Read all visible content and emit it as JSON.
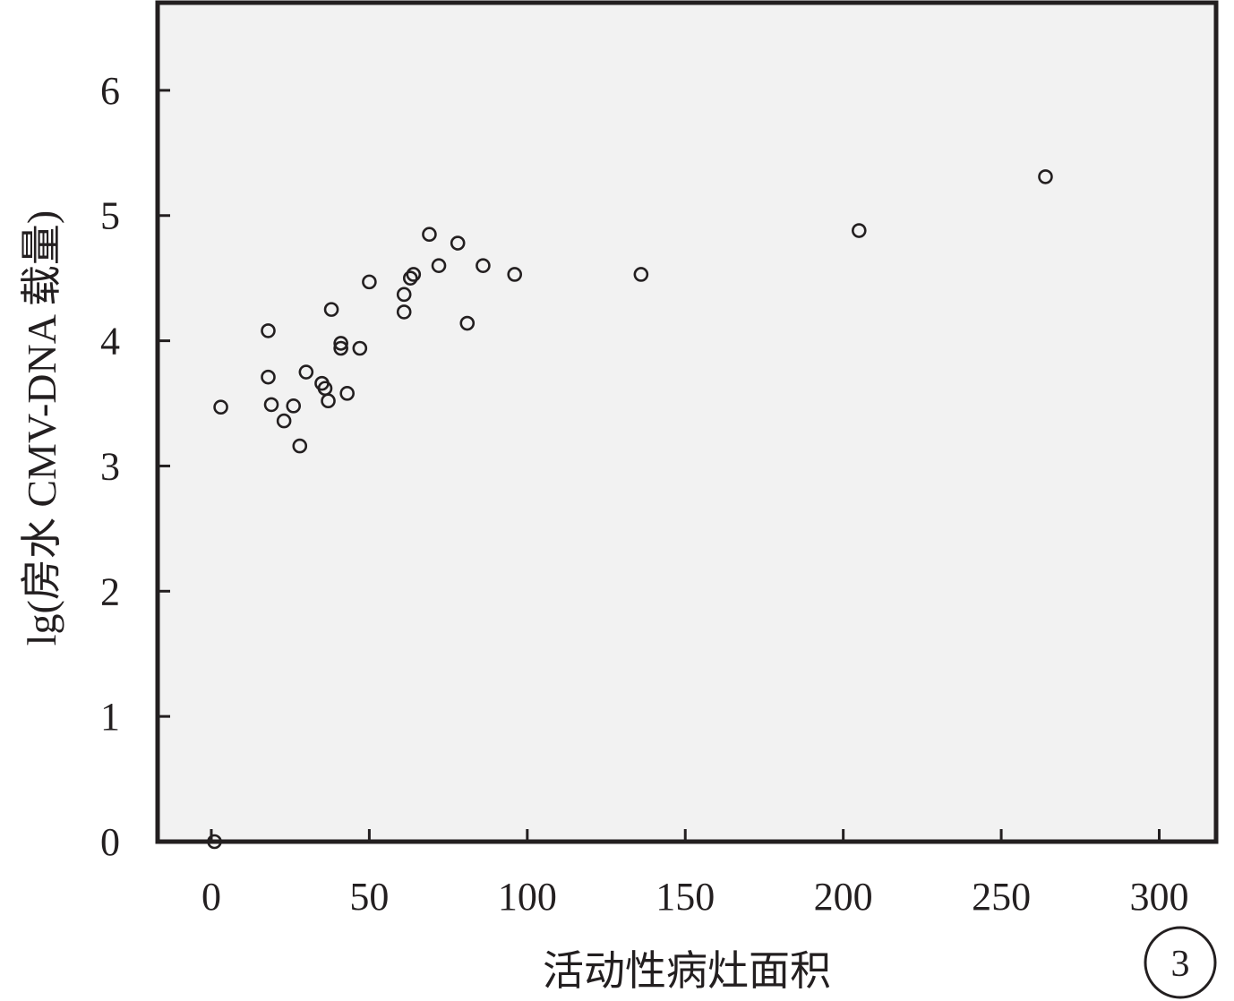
{
  "chart_data": {
    "type": "scatter",
    "title": "",
    "xlabel": "活动性病灶面积",
    "ylabel": "lg(房水 CMV-DNA 载量)",
    "xlim": [
      -17,
      318
    ],
    "ylim": [
      0,
      6.7
    ],
    "xticks": [
      0,
      50,
      100,
      150,
      200,
      250,
      300
    ],
    "yticks": [
      0,
      1,
      2,
      3,
      4,
      5,
      6
    ],
    "xtick_labels": [
      "0",
      "50",
      "100",
      "150",
      "200",
      "250",
      "300"
    ],
    "ytick_labels": [
      "0",
      "1",
      "2",
      "3",
      "4",
      "5",
      "6"
    ],
    "grid": false,
    "legend": "none",
    "panel_label": "3",
    "marker": "open-circle",
    "plot_background": "#f2f2f2",
    "axis_color": "#231f20",
    "points": [
      {
        "x": 1,
        "y": 0.0
      },
      {
        "x": 3,
        "y": 3.47
      },
      {
        "x": 18,
        "y": 4.08
      },
      {
        "x": 18,
        "y": 3.71
      },
      {
        "x": 19,
        "y": 3.49
      },
      {
        "x": 23,
        "y": 3.36
      },
      {
        "x": 26,
        "y": 3.48
      },
      {
        "x": 28,
        "y": 3.16
      },
      {
        "x": 30,
        "y": 3.75
      },
      {
        "x": 35,
        "y": 3.66
      },
      {
        "x": 36,
        "y": 3.62
      },
      {
        "x": 37,
        "y": 3.52
      },
      {
        "x": 38,
        "y": 4.25
      },
      {
        "x": 41,
        "y": 3.98
      },
      {
        "x": 41,
        "y": 3.94
      },
      {
        "x": 43,
        "y": 3.58
      },
      {
        "x": 47,
        "y": 3.94
      },
      {
        "x": 50,
        "y": 4.47
      },
      {
        "x": 61,
        "y": 4.37
      },
      {
        "x": 61,
        "y": 4.23
      },
      {
        "x": 63,
        "y": 4.5
      },
      {
        "x": 64,
        "y": 4.53
      },
      {
        "x": 69,
        "y": 4.85
      },
      {
        "x": 72,
        "y": 4.6
      },
      {
        "x": 78,
        "y": 4.78
      },
      {
        "x": 81,
        "y": 4.14
      },
      {
        "x": 86,
        "y": 4.6
      },
      {
        "x": 96,
        "y": 4.53
      },
      {
        "x": 136,
        "y": 4.53
      },
      {
        "x": 205,
        "y": 4.88
      },
      {
        "x": 264,
        "y": 5.31
      }
    ]
  }
}
